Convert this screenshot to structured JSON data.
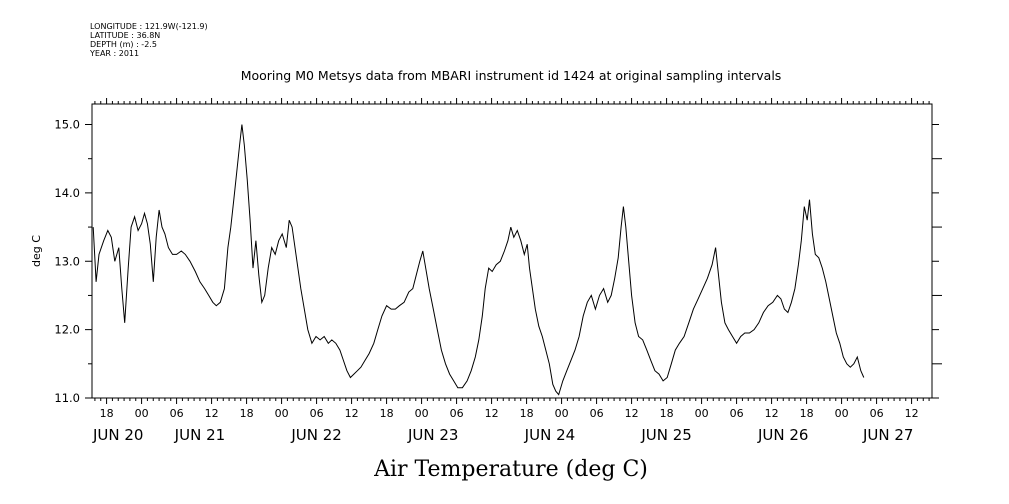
{
  "meta": {
    "longitude": "LONGITUDE : 121.9W(-121.9)",
    "latitude": "LATITUDE : 36.8N",
    "depth": "DEPTH (m) : -2.5",
    "year": "YEAR : 2011"
  },
  "chart_data": {
    "type": "line",
    "title": "Mooring M0 Metsys data from MBARI instrument id 1424 at original sampling intervals",
    "xlabel": "Air Temperature (deg C)",
    "ylabel": "deg C",
    "ylim": [
      11.0,
      15.3
    ],
    "yticks": [
      "11.0",
      "12.0",
      "13.0",
      "14.0",
      "15.0"
    ],
    "x_unit": "hours since JUN 20 00:00",
    "xlim": [
      -8.5,
      135.5
    ],
    "hour_ticks": [
      {
        "h": -6,
        "label": "18"
      },
      {
        "h": 0,
        "label": "00"
      },
      {
        "h": 6,
        "label": "06"
      },
      {
        "h": 12,
        "label": "12"
      },
      {
        "h": 18,
        "label": "18"
      },
      {
        "h": 24,
        "label": "00"
      },
      {
        "h": 30,
        "label": "06"
      },
      {
        "h": 36,
        "label": "12"
      },
      {
        "h": 42,
        "label": "18"
      },
      {
        "h": 48,
        "label": "00"
      },
      {
        "h": 54,
        "label": "06"
      },
      {
        "h": 60,
        "label": "12"
      },
      {
        "h": 66,
        "label": "18"
      },
      {
        "h": 72,
        "label": "00"
      },
      {
        "h": 78,
        "label": "06"
      },
      {
        "h": 84,
        "label": "12"
      },
      {
        "h": 90,
        "label": "18"
      },
      {
        "h": 96,
        "label": "00"
      },
      {
        "h": 102,
        "label": "06"
      },
      {
        "h": 108,
        "label": "12"
      },
      {
        "h": 114,
        "label": "18"
      },
      {
        "h": 120,
        "label": "00"
      },
      {
        "h": 126,
        "label": "06"
      },
      {
        "h": 132,
        "label": "12"
      }
    ],
    "day_labels": [
      {
        "h": -4,
        "label": "JUN 20"
      },
      {
        "h": 10,
        "label": "JUN 21"
      },
      {
        "h": 30,
        "label": "JUN 22"
      },
      {
        "h": 50,
        "label": "JUN 23"
      },
      {
        "h": 70,
        "label": "JUN 24"
      },
      {
        "h": 90,
        "label": "JUN 25"
      },
      {
        "h": 110,
        "label": "JUN 26"
      },
      {
        "h": 128,
        "label": "JUN 27"
      }
    ],
    "series": [
      {
        "name": "Air Temperature",
        "points": [
          [
            -8.3,
            13.5
          ],
          [
            -7.8,
            12.7
          ],
          [
            -7.3,
            13.1
          ],
          [
            -6.5,
            13.3
          ],
          [
            -5.8,
            13.45
          ],
          [
            -5.2,
            13.35
          ],
          [
            -4.6,
            13.0
          ],
          [
            -3.9,
            13.2
          ],
          [
            -3.4,
            12.6
          ],
          [
            -2.9,
            12.1
          ],
          [
            -2.3,
            12.9
          ],
          [
            -1.8,
            13.5
          ],
          [
            -1.2,
            13.65
          ],
          [
            -0.6,
            13.45
          ],
          [
            0.0,
            13.55
          ],
          [
            0.5,
            13.7
          ],
          [
            1.0,
            13.55
          ],
          [
            1.5,
            13.25
          ],
          [
            2.0,
            12.7
          ],
          [
            2.5,
            13.35
          ],
          [
            3.0,
            13.75
          ],
          [
            3.5,
            13.5
          ],
          [
            4.0,
            13.4
          ],
          [
            4.6,
            13.2
          ],
          [
            5.3,
            13.1
          ],
          [
            6.0,
            13.1
          ],
          [
            6.8,
            13.15
          ],
          [
            7.5,
            13.1
          ],
          [
            8.3,
            13.0
          ],
          [
            9.2,
            12.85
          ],
          [
            10.0,
            12.7
          ],
          [
            10.8,
            12.6
          ],
          [
            11.5,
            12.5
          ],
          [
            12.2,
            12.4
          ],
          [
            12.8,
            12.35
          ],
          [
            13.5,
            12.4
          ],
          [
            14.2,
            12.6
          ],
          [
            14.8,
            13.2
          ],
          [
            15.3,
            13.5
          ],
          [
            15.8,
            13.9
          ],
          [
            16.3,
            14.3
          ],
          [
            16.8,
            14.7
          ],
          [
            17.2,
            15.0
          ],
          [
            17.6,
            14.7
          ],
          [
            18.1,
            14.2
          ],
          [
            18.6,
            13.6
          ],
          [
            19.1,
            12.9
          ],
          [
            19.6,
            13.3
          ],
          [
            20.1,
            12.8
          ],
          [
            20.6,
            12.4
          ],
          [
            21.1,
            12.5
          ],
          [
            21.7,
            12.9
          ],
          [
            22.3,
            13.2
          ],
          [
            22.9,
            13.1
          ],
          [
            23.5,
            13.3
          ],
          [
            24.1,
            13.4
          ],
          [
            24.8,
            13.2
          ],
          [
            25.3,
            13.6
          ],
          [
            25.8,
            13.5
          ],
          [
            26.3,
            13.2
          ],
          [
            26.8,
            12.9
          ],
          [
            27.3,
            12.6
          ],
          [
            27.9,
            12.3
          ],
          [
            28.5,
            12.0
          ],
          [
            29.2,
            11.8
          ],
          [
            29.9,
            11.9
          ],
          [
            30.6,
            11.85
          ],
          [
            31.3,
            11.9
          ],
          [
            32.0,
            11.8
          ],
          [
            32.6,
            11.85
          ],
          [
            33.3,
            11.8
          ],
          [
            34.0,
            11.7
          ],
          [
            34.6,
            11.55
          ],
          [
            35.2,
            11.4
          ],
          [
            35.8,
            11.3
          ],
          [
            36.4,
            11.35
          ],
          [
            37.0,
            11.4
          ],
          [
            37.6,
            11.45
          ],
          [
            38.3,
            11.55
          ],
          [
            39.0,
            11.65
          ],
          [
            39.8,
            11.8
          ],
          [
            40.5,
            12.0
          ],
          [
            41.2,
            12.2
          ],
          [
            42.0,
            12.35
          ],
          [
            42.8,
            12.3
          ],
          [
            43.5,
            12.3
          ],
          [
            44.2,
            12.35
          ],
          [
            45.0,
            12.4
          ],
          [
            45.8,
            12.55
          ],
          [
            46.5,
            12.6
          ],
          [
            47.1,
            12.8
          ],
          [
            47.7,
            13.0
          ],
          [
            48.2,
            13.15
          ],
          [
            48.7,
            12.9
          ],
          [
            49.3,
            12.6
          ],
          [
            50.0,
            12.3
          ],
          [
            50.7,
            12.0
          ],
          [
            51.4,
            11.7
          ],
          [
            52.1,
            11.5
          ],
          [
            52.8,
            11.35
          ],
          [
            53.5,
            11.25
          ],
          [
            54.2,
            11.15
          ],
          [
            55.0,
            11.15
          ],
          [
            55.8,
            11.25
          ],
          [
            56.5,
            11.4
          ],
          [
            57.2,
            11.6
          ],
          [
            57.8,
            11.85
          ],
          [
            58.4,
            12.2
          ],
          [
            58.9,
            12.6
          ],
          [
            59.5,
            12.9
          ],
          [
            60.1,
            12.85
          ],
          [
            60.8,
            12.95
          ],
          [
            61.5,
            13.0
          ],
          [
            62.2,
            13.15
          ],
          [
            62.8,
            13.3
          ],
          [
            63.3,
            13.5
          ],
          [
            63.8,
            13.35
          ],
          [
            64.4,
            13.45
          ],
          [
            65.0,
            13.3
          ],
          [
            65.6,
            13.1
          ],
          [
            66.1,
            13.25
          ],
          [
            66.5,
            12.9
          ],
          [
            67.0,
            12.6
          ],
          [
            67.5,
            12.3
          ],
          [
            68.1,
            12.05
          ],
          [
            68.7,
            11.9
          ],
          [
            69.3,
            11.7
          ],
          [
            69.9,
            11.5
          ],
          [
            70.5,
            11.2
          ],
          [
            71.0,
            11.1
          ],
          [
            71.5,
            11.05
          ],
          [
            72.2,
            11.25
          ],
          [
            72.9,
            11.4
          ],
          [
            73.6,
            11.55
          ],
          [
            74.3,
            11.7
          ],
          [
            75.0,
            11.9
          ],
          [
            75.7,
            12.2
          ],
          [
            76.4,
            12.4
          ],
          [
            77.1,
            12.5
          ],
          [
            77.8,
            12.3
          ],
          [
            78.5,
            12.5
          ],
          [
            79.2,
            12.6
          ],
          [
            79.9,
            12.4
          ],
          [
            80.5,
            12.5
          ],
          [
            81.1,
            12.75
          ],
          [
            81.7,
            13.05
          ],
          [
            82.2,
            13.5
          ],
          [
            82.6,
            13.8
          ],
          [
            83.0,
            13.5
          ],
          [
            83.5,
            13.0
          ],
          [
            84.0,
            12.5
          ],
          [
            84.6,
            12.1
          ],
          [
            85.2,
            11.9
          ],
          [
            85.9,
            11.85
          ],
          [
            86.6,
            11.7
          ],
          [
            87.3,
            11.55
          ],
          [
            88.0,
            11.4
          ],
          [
            88.7,
            11.35
          ],
          [
            89.4,
            11.25
          ],
          [
            90.1,
            11.3
          ],
          [
            90.8,
            11.5
          ],
          [
            91.5,
            11.7
          ],
          [
            92.2,
            11.8
          ],
          [
            93.0,
            11.9
          ],
          [
            93.8,
            12.1
          ],
          [
            94.6,
            12.3
          ],
          [
            95.4,
            12.45
          ],
          [
            96.2,
            12.6
          ],
          [
            97.0,
            12.75
          ],
          [
            97.8,
            12.95
          ],
          [
            98.4,
            13.2
          ],
          [
            98.9,
            12.8
          ],
          [
            99.4,
            12.4
          ],
          [
            100.0,
            12.1
          ],
          [
            100.6,
            12.0
          ],
          [
            101.3,
            11.9
          ],
          [
            102.0,
            11.8
          ],
          [
            102.7,
            11.9
          ],
          [
            103.4,
            11.95
          ],
          [
            104.2,
            11.95
          ],
          [
            105.0,
            12.0
          ],
          [
            105.8,
            12.1
          ],
          [
            106.6,
            12.25
          ],
          [
            107.4,
            12.35
          ],
          [
            108.2,
            12.4
          ],
          [
            109.0,
            12.5
          ],
          [
            109.6,
            12.45
          ],
          [
            110.2,
            12.3
          ],
          [
            110.8,
            12.25
          ],
          [
            111.4,
            12.4
          ],
          [
            112.0,
            12.6
          ],
          [
            112.6,
            12.95
          ],
          [
            113.1,
            13.3
          ],
          [
            113.6,
            13.8
          ],
          [
            114.1,
            13.6
          ],
          [
            114.5,
            13.9
          ],
          [
            115.0,
            13.4
          ],
          [
            115.5,
            13.1
          ],
          [
            116.1,
            13.05
          ],
          [
            116.7,
            12.9
          ],
          [
            117.3,
            12.7
          ],
          [
            117.9,
            12.45
          ],
          [
            118.5,
            12.2
          ],
          [
            119.1,
            11.95
          ],
          [
            119.7,
            11.8
          ],
          [
            120.3,
            11.6
          ],
          [
            120.9,
            11.5
          ],
          [
            121.5,
            11.45
          ],
          [
            122.1,
            11.5
          ],
          [
            122.7,
            11.6
          ],
          [
            123.3,
            11.4
          ],
          [
            123.8,
            11.3
          ]
        ]
      }
    ]
  }
}
